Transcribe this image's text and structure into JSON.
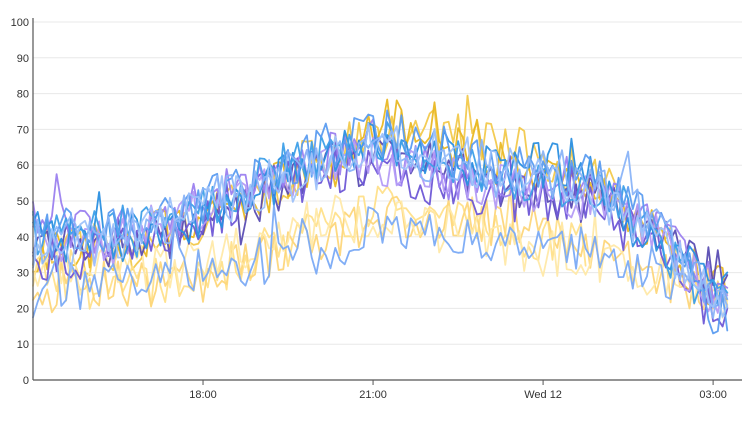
{
  "chart_data": {
    "type": "line",
    "title": "",
    "xlabel": "",
    "ylabel": "",
    "ylim": [
      0,
      100
    ],
    "y_ticks": [
      "0",
      "10",
      "20",
      "30",
      "40",
      "50",
      "60",
      "70",
      "80",
      "90",
      "100"
    ],
    "x_start": "15:00",
    "x_end": "03:20",
    "x_ticks": [
      {
        "label": "18:00",
        "time": "18:00"
      },
      {
        "label": "21:00",
        "time": "21:00"
      },
      {
        "label": "Wed 12",
        "time": "00:00"
      },
      {
        "label": "03:00",
        "time": "03:00"
      }
    ],
    "grid": "horizontal",
    "legend": "none",
    "series": [
      {
        "color": "#f2c94c",
        "anchors": [
          [
            0,
            38
          ],
          [
            1,
            36
          ],
          [
            2,
            38
          ],
          [
            3,
            45
          ],
          [
            4,
            53
          ],
          [
            5,
            61
          ],
          [
            6,
            68
          ],
          [
            7,
            70
          ],
          [
            8,
            66
          ],
          [
            9,
            62
          ],
          [
            10,
            55
          ],
          [
            11,
            42
          ],
          [
            12,
            27
          ]
        ],
        "end": 11.3,
        "seed": 1
      },
      {
        "color": "#e9b824",
        "anchors": [
          [
            0,
            35
          ],
          [
            1,
            38
          ],
          [
            2,
            40
          ],
          [
            3,
            44
          ],
          [
            4,
            52
          ],
          [
            5,
            60
          ],
          [
            6,
            72
          ],
          [
            7,
            72
          ],
          [
            8,
            60
          ],
          [
            9,
            58
          ],
          [
            10,
            52
          ],
          [
            11,
            40
          ],
          [
            12,
            25
          ]
        ],
        "seed": 2
      },
      {
        "color": "#ffe08a",
        "anchors": [
          [
            0,
            30
          ],
          [
            1,
            26
          ],
          [
            2,
            27
          ],
          [
            3,
            30
          ],
          [
            4,
            35
          ],
          [
            5,
            42
          ],
          [
            6,
            48
          ],
          [
            7,
            48
          ],
          [
            8,
            44
          ],
          [
            9,
            40
          ],
          [
            10,
            38
          ],
          [
            11,
            32
          ],
          [
            12,
            26
          ]
        ],
        "end": 9.8,
        "seed": 3
      },
      {
        "color": "#fdd67a",
        "anchors": [
          [
            0,
            25
          ],
          [
            1,
            26
          ],
          [
            2,
            27
          ],
          [
            3,
            28
          ],
          [
            4,
            33
          ],
          [
            5,
            40
          ],
          [
            6,
            44
          ],
          [
            7,
            46
          ],
          [
            8,
            44
          ],
          [
            9,
            42
          ],
          [
            10,
            36
          ],
          [
            11,
            30
          ],
          [
            12,
            22
          ]
        ],
        "seed": 4
      },
      {
        "color": "#ffe9a8",
        "anchors": [
          [
            0,
            32
          ],
          [
            1,
            30
          ],
          [
            2,
            31
          ],
          [
            3,
            33
          ],
          [
            4,
            38
          ],
          [
            5,
            44
          ],
          [
            6,
            46
          ],
          [
            7,
            43
          ],
          [
            8,
            40
          ],
          [
            9,
            36
          ],
          [
            10,
            33
          ],
          [
            11,
            28
          ],
          [
            12,
            24
          ]
        ],
        "seed": 5
      },
      {
        "color": "#5a4db3",
        "anchors": [
          [
            0,
            36
          ],
          [
            1,
            38
          ],
          [
            2,
            40
          ],
          [
            3,
            42
          ],
          [
            4,
            50
          ],
          [
            5,
            58
          ],
          [
            6,
            62
          ],
          [
            7,
            60
          ],
          [
            8,
            56
          ],
          [
            9,
            52
          ],
          [
            10,
            50
          ],
          [
            11,
            40
          ],
          [
            12,
            30
          ]
        ],
        "seed": 6
      },
      {
        "color": "#6e57d6",
        "anchors": [
          [
            0,
            34
          ],
          [
            1,
            36
          ],
          [
            2,
            38
          ],
          [
            3,
            46
          ],
          [
            4,
            52
          ],
          [
            5,
            58
          ],
          [
            6,
            60
          ],
          [
            7,
            56
          ],
          [
            8,
            52
          ],
          [
            9,
            50
          ],
          [
            10,
            48
          ],
          [
            11,
            36
          ],
          [
            12,
            20
          ]
        ],
        "seed": 7
      },
      {
        "color": "#9b7fef",
        "anchors": [
          [
            0,
            48
          ],
          [
            1,
            40
          ],
          [
            2,
            43
          ],
          [
            3,
            50
          ],
          [
            4,
            55
          ],
          [
            5,
            62
          ],
          [
            6,
            64
          ],
          [
            7,
            58
          ],
          [
            8,
            56
          ],
          [
            9,
            58
          ],
          [
            10,
            55
          ],
          [
            11,
            44
          ],
          [
            12,
            28
          ]
        ],
        "seed": 8
      },
      {
        "color": "#b49bf5",
        "anchors": [
          [
            0,
            40
          ],
          [
            1,
            38
          ],
          [
            2,
            40
          ],
          [
            3,
            48
          ],
          [
            4,
            54
          ],
          [
            5,
            60
          ],
          [
            6,
            62
          ],
          [
            7,
            58
          ],
          [
            8,
            55
          ],
          [
            9,
            54
          ],
          [
            10,
            50
          ],
          [
            11,
            40
          ],
          [
            12,
            24
          ]
        ],
        "seed": 9
      },
      {
        "color": "#2a8fe0",
        "anchors": [
          [
            0,
            40
          ],
          [
            1,
            40
          ],
          [
            2,
            42
          ],
          [
            3,
            46
          ],
          [
            4,
            54
          ],
          [
            5,
            60
          ],
          [
            6,
            66
          ],
          [
            7,
            64
          ],
          [
            8,
            60
          ],
          [
            9,
            60
          ],
          [
            10,
            56
          ],
          [
            11,
            38
          ],
          [
            12,
            26
          ]
        ],
        "seed": 10
      },
      {
        "color": "#3d9fe8",
        "anchors": [
          [
            0,
            42
          ],
          [
            1,
            40
          ],
          [
            2,
            44
          ],
          [
            3,
            48
          ],
          [
            4,
            55
          ],
          [
            5,
            62
          ],
          [
            6,
            68
          ],
          [
            7,
            64
          ],
          [
            8,
            58
          ],
          [
            9,
            56
          ],
          [
            10,
            54
          ],
          [
            11,
            38
          ],
          [
            12,
            22
          ]
        ],
        "seed": 11
      },
      {
        "color": "#5b9cf0",
        "anchors": [
          [
            0,
            40
          ],
          [
            1,
            42
          ],
          [
            2,
            44
          ],
          [
            3,
            50
          ],
          [
            4,
            56
          ],
          [
            5,
            64
          ],
          [
            6,
            70
          ],
          [
            7,
            66
          ],
          [
            8,
            60
          ],
          [
            9,
            58
          ],
          [
            10,
            56
          ],
          [
            11,
            44
          ],
          [
            12,
            18
          ]
        ],
        "seed": 12
      },
      {
        "color": "#7aaaf5",
        "anchors": [
          [
            0,
            24
          ],
          [
            1,
            27
          ],
          [
            2,
            28
          ],
          [
            3,
            32
          ],
          [
            4,
            33
          ],
          [
            5,
            36
          ],
          [
            6,
            42
          ],
          [
            7,
            40
          ],
          [
            8,
            38
          ],
          [
            9,
            40
          ],
          [
            10,
            34
          ],
          [
            11,
            30
          ],
          [
            12,
            27
          ]
        ],
        "seed": 13
      },
      {
        "color": "#8ab4f8",
        "anchors": [
          [
            0,
            38
          ],
          [
            1,
            40
          ],
          [
            2,
            40
          ],
          [
            3,
            50
          ],
          [
            4,
            56
          ],
          [
            5,
            62
          ],
          [
            6,
            64
          ],
          [
            7,
            62
          ],
          [
            8,
            58
          ],
          [
            9,
            58
          ],
          [
            10,
            56
          ],
          [
            11,
            44
          ],
          [
            12,
            20
          ]
        ],
        "seed": 14
      },
      {
        "color": "#9ec2fa",
        "anchors": [
          [
            0,
            36
          ],
          [
            1,
            38
          ],
          [
            2,
            42
          ],
          [
            3,
            48
          ],
          [
            4,
            54
          ],
          [
            5,
            60
          ],
          [
            6,
            66
          ],
          [
            7,
            64
          ],
          [
            8,
            60
          ],
          [
            9,
            56
          ],
          [
            10,
            52
          ],
          [
            11,
            40
          ],
          [
            12,
            24
          ]
        ],
        "seed": 15
      }
    ]
  }
}
